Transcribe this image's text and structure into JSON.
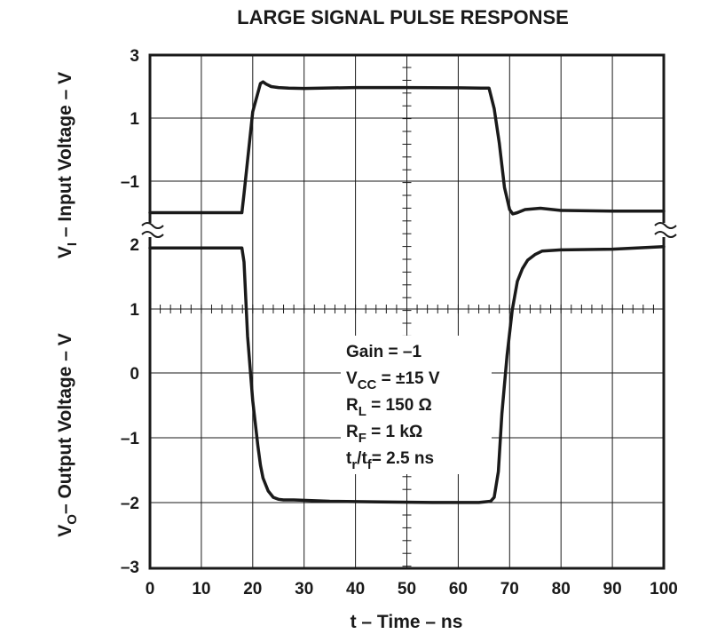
{
  "chart_data": {
    "type": "line",
    "title": "LARGE SIGNAL PULSE RESPONSE",
    "xlabel": "t – Time – ns",
    "xlim": [
      0,
      100
    ],
    "x_ticks": [
      "0",
      "10",
      "20",
      "30",
      "40",
      "50",
      "60",
      "70",
      "80",
      "90",
      "100"
    ],
    "grid": true,
    "panels": [
      {
        "name": "input",
        "ylabel": {
          "main": "V",
          "sub": "I",
          "rest": " – Input Voltage – V"
        },
        "y_ticks": [
          "3",
          "1",
          "–1"
        ],
        "x": [
          0,
          17.9,
          18.3,
          20.0,
          21.5,
          22.0,
          22.6,
          23.6,
          25.0,
          27.0,
          30.0,
          40.0,
          50.0,
          60.0,
          64.5,
          66.0,
          67.0,
          68.0,
          69.0,
          70.0,
          70.6,
          71.5,
          73.0,
          76.0,
          80.0,
          90.0,
          100.0
        ],
        "y": [
          -2.0,
          -2.0,
          -1.4,
          1.2,
          2.1,
          2.15,
          2.08,
          2.0,
          1.97,
          1.95,
          1.94,
          1.97,
          1.97,
          1.96,
          1.95,
          1.95,
          1.3,
          0.2,
          -1.2,
          -1.9,
          -2.04,
          -2.0,
          -1.9,
          -1.86,
          -1.93,
          -1.95,
          -1.95
        ]
      },
      {
        "name": "output",
        "ylabel": {
          "main": "V",
          "sub": "O",
          "rest": "– Output Voltage – V"
        },
        "y_ticks": [
          "2",
          "1",
          "0",
          "–1",
          "–2",
          "–3"
        ],
        "x": [
          0,
          10.0,
          17.9,
          18.3,
          19.0,
          20.0,
          21.0,
          21.5,
          22.0,
          23.0,
          24.0,
          25.0,
          26.0,
          28.0,
          35.0,
          45.0,
          55.0,
          64.0,
          66.3,
          67.0,
          67.8,
          68.5,
          69.5,
          70.5,
          71.5,
          72.5,
          73.5,
          75.0,
          76.3,
          80.0,
          90.0,
          100.0
        ],
        "y": [
          1.97,
          1.97,
          1.97,
          1.75,
          0.6,
          -0.4,
          -1.1,
          -1.4,
          -1.6,
          -1.8,
          -1.9,
          -1.93,
          -1.94,
          -1.94,
          -1.96,
          -1.97,
          -1.98,
          -1.98,
          -1.96,
          -1.9,
          -1.5,
          -0.6,
          0.3,
          1.0,
          1.45,
          1.65,
          1.78,
          1.87,
          1.92,
          1.94,
          1.95,
          1.99
        ]
      }
    ],
    "annotation": [
      {
        "main": "Gain = –1"
      },
      {
        "main": "V",
        "sub": "CC",
        "rest": " = ±15 V"
      },
      {
        "main": "R",
        "sub": "L",
        "rest": " = 150 Ω"
      },
      {
        "main": "R",
        "sub": "F",
        "rest": " = 1 kΩ"
      },
      {
        "main": "t",
        "sub": "r",
        "mid": "/t",
        "sub2": "f",
        "rest": "= 2.5 ns"
      }
    ]
  }
}
